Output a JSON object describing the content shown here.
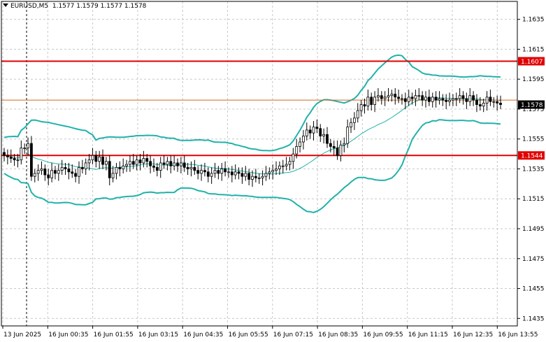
{
  "header": {
    "symbol": "EURUSD,M5",
    "ohlc": "1.1577 1.1579 1.1577 1.1578"
  },
  "colors": {
    "grid": "#c8c8c8",
    "axis": "#000000",
    "band": "#20b2aa",
    "ma": "#20b2aa",
    "resistance": "#e00000",
    "support": "#e00000",
    "bid_line": "#d2691e",
    "price_tag_bg": "#000000",
    "level_tag_bg": "#e00000"
  },
  "chart_data": {
    "type": "candlestick",
    "yticks": [
      "1.1635",
      "1.1615",
      "1.1595",
      "1.1575",
      "1.1555",
      "1.1535",
      "1.1515",
      "1.1495",
      "1.1475",
      "1.1455",
      "1.1435"
    ],
    "xticks": [
      "13 Jun 2025",
      "16 Jun 00:35",
      "16 Jun 01:55",
      "16 Jun 03:15",
      "16 Jun 04:35",
      "16 Jun 05:55",
      "16 Jun 07:15",
      "16 Jun 08:35",
      "16 Jun 09:55",
      "16 Jun 11:15",
      "16 Jun 12:35",
      "16 Jun 13:55"
    ],
    "ylim": [
      1.143,
      1.1647
    ],
    "levels": [
      {
        "name": "resistance",
        "value": 1.1607,
        "label": "1.1607"
      },
      {
        "name": "support",
        "value": 1.1544,
        "label": "1.1544"
      }
    ],
    "bid_line": 1.1581,
    "current_price": {
      "value": 1.1578,
      "label": "1.1578"
    },
    "session_separator": "13 Jun 2025",
    "close": [
      1.1544,
      1.1543,
      1.1542,
      1.1541,
      1.1541,
      1.1549,
      1.1549,
      1.1552,
      1.153,
      1.1532,
      1.1534,
      1.1535,
      1.1531,
      1.1529,
      1.1534,
      1.1532,
      1.1534,
      1.1536,
      1.1535,
      1.1533,
      1.1532,
      1.153,
      1.1536,
      1.1535,
      1.1539,
      1.1541,
      1.1544,
      1.154,
      1.1543,
      1.1538,
      1.154,
      1.1529,
      1.1532,
      1.1536,
      1.1535,
      1.1537,
      1.1538,
      1.154,
      1.1538,
      1.1541,
      1.1539,
      1.1542,
      1.154,
      1.1537,
      1.1536,
      1.1534,
      1.1539,
      1.1538,
      1.154,
      1.1537,
      1.1539,
      1.1537,
      1.1539,
      1.1536,
      1.1535,
      1.1536,
      1.1534,
      1.1532,
      1.1534,
      1.1533,
      1.153,
      1.1532,
      1.1534,
      1.1532,
      1.1535,
      1.1533,
      1.1533,
      1.1531,
      1.1533,
      1.1532,
      1.153,
      1.1532,
      1.1528,
      1.153,
      1.1529,
      1.1529,
      1.153,
      1.1532,
      1.1533,
      1.1534,
      1.1535,
      1.1537,
      1.1537,
      1.1538,
      1.154,
      1.1545,
      1.155,
      1.1553,
      1.1557,
      1.1561,
      1.1559,
      1.1563,
      1.1562,
      1.1557,
      1.1558,
      1.1552,
      1.155,
      1.1549,
      1.1544,
      1.1551,
      1.1552,
      1.1563,
      1.1566,
      1.1569,
      1.1574,
      1.1578,
      1.1577,
      1.1583,
      1.1578,
      1.1583,
      1.1584,
      1.1582,
      1.1583,
      1.1584,
      1.1585,
      1.1583,
      1.1582,
      1.1582,
      1.158,
      1.1583,
      1.1582,
      1.1584,
      1.1584,
      1.1581,
      1.1583,
      1.158,
      1.1583,
      1.1581,
      1.1582,
      1.1581,
      1.158,
      1.1581,
      1.1582,
      1.1582,
      1.1584,
      1.1582,
      1.158,
      1.1584,
      1.1581,
      1.1578,
      1.1577,
      1.1579,
      1.1583,
      1.158,
      1.158,
      1.1579,
      1.1578
    ]
  }
}
